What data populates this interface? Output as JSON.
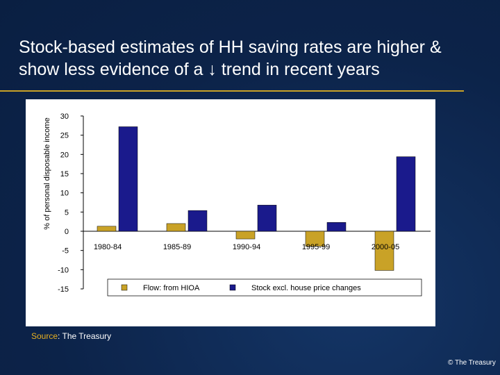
{
  "title_lines": [
    "Stock-based estimates of HH saving rates are higher &",
    "show less evidence of a ↓ trend in recent years"
  ],
  "source": {
    "key": "Source",
    "text": ": The Treasury"
  },
  "copyright": "© The Treasury",
  "colors": {
    "background": "#0c2349",
    "accent_rule": "#c9a227",
    "series_flow": "#c9a227",
    "series_stock": "#1a1a8c"
  },
  "chart_data": {
    "type": "bar",
    "title": "",
    "xlabel": "",
    "ylabel": "% of personal disposable income",
    "ylim": [
      -15,
      30
    ],
    "yticks": [
      30,
      25,
      20,
      15,
      10,
      5,
      0,
      -5,
      -10,
      -15
    ],
    "categories": [
      "1980-84",
      "1985-89",
      "1990-94",
      "1995-99",
      "2000-05"
    ],
    "series": [
      {
        "name": "Flow: from HIOA",
        "color": "#c9a227",
        "values": [
          1.3,
          2.0,
          -2.0,
          -3.9,
          -10.2
        ]
      },
      {
        "name": "Stock excl. house price changes",
        "color": "#1a1a8c",
        "values": [
          27.2,
          5.4,
          6.8,
          2.3,
          19.4
        ]
      }
    ],
    "legend_placement": "bottom",
    "grid": false
  }
}
